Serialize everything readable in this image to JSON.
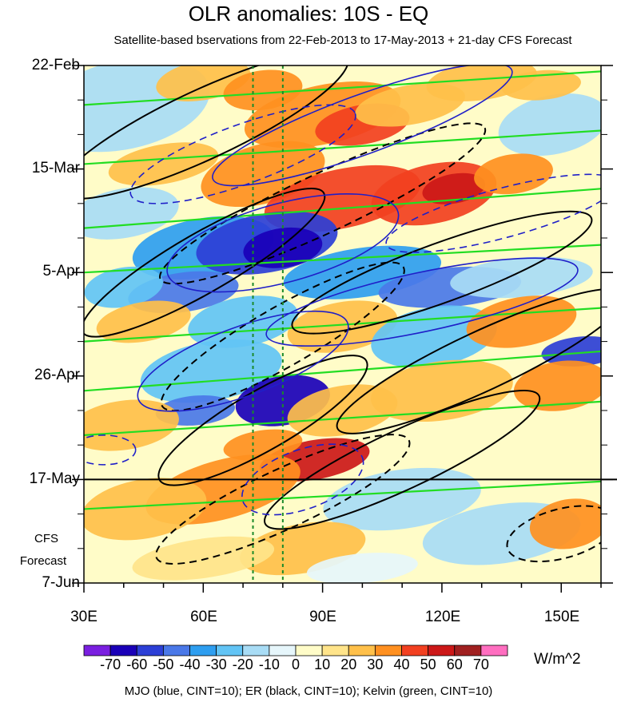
{
  "title": "OLR anomalies: 10S - EQ",
  "subtitle": "Satellite-based bservations from 22-Feb-2013 to 17-May-2013 + 21-day CFS Forecast",
  "y_ticks": [
    "22-Feb",
    "15-Mar",
    "5-Apr",
    "26-Apr",
    "17-May",
    "7-Jun"
  ],
  "x_ticks": [
    "30E",
    "60E",
    "90E",
    "120E",
    "150E"
  ],
  "forecast_label_1": "CFS",
  "forecast_label_2": "Forecast",
  "colorbar": {
    "labels": [
      "-70",
      "-60",
      "-50",
      "-40",
      "-30",
      "-20",
      "-10",
      "0",
      "10",
      "20",
      "30",
      "40",
      "50",
      "60",
      "70"
    ],
    "colors": [
      "#7a1fe0",
      "#1a00b8",
      "#2c3fd6",
      "#4a78e8",
      "#2e9ef0",
      "#62c4f5",
      "#a8dcf5",
      "#e6f6fb",
      "#fffcc8",
      "#ffe48a",
      "#ffc04a",
      "#ff9020",
      "#f24020",
      "#cc1818",
      "#a02020",
      "#ff6ec0"
    ],
    "unit": "W/m^2"
  },
  "footer": "MJO (blue, CINT=10); ER (black, CINT=10); Kelvin (green, CINT=10)",
  "chart_data": {
    "type": "heatmap",
    "x_axis": {
      "range": [
        "30E",
        "160E"
      ],
      "ticks": [
        "30E",
        "60E",
        "90E",
        "120E",
        "150E"
      ]
    },
    "y_axis": {
      "range": [
        "22-Feb-2013",
        "7-Jun-2013"
      ],
      "direction": "time increases downward",
      "ticks": [
        "22-Feb",
        "15-Mar",
        "5-Apr",
        "26-Apr",
        "17-May",
        "7-Jun"
      ]
    },
    "observation_end": "17-May",
    "forecast_period": "17-May to 7-Jun",
    "reference_longitudes": [
      "72.5E",
      "80E"
    ],
    "contour_interval": 10,
    "color_levels": [
      -70,
      -60,
      -50,
      -40,
      -30,
      -20,
      -10,
      0,
      10,
      20,
      30,
      40,
      50,
      60,
      70
    ],
    "overlays": [
      "MJO",
      "ER",
      "Kelvin"
    ],
    "overlay_colors": {
      "MJO": "#1f1fc8",
      "ER": "#000000",
      "Kelvin": "#22dd22"
    }
  }
}
